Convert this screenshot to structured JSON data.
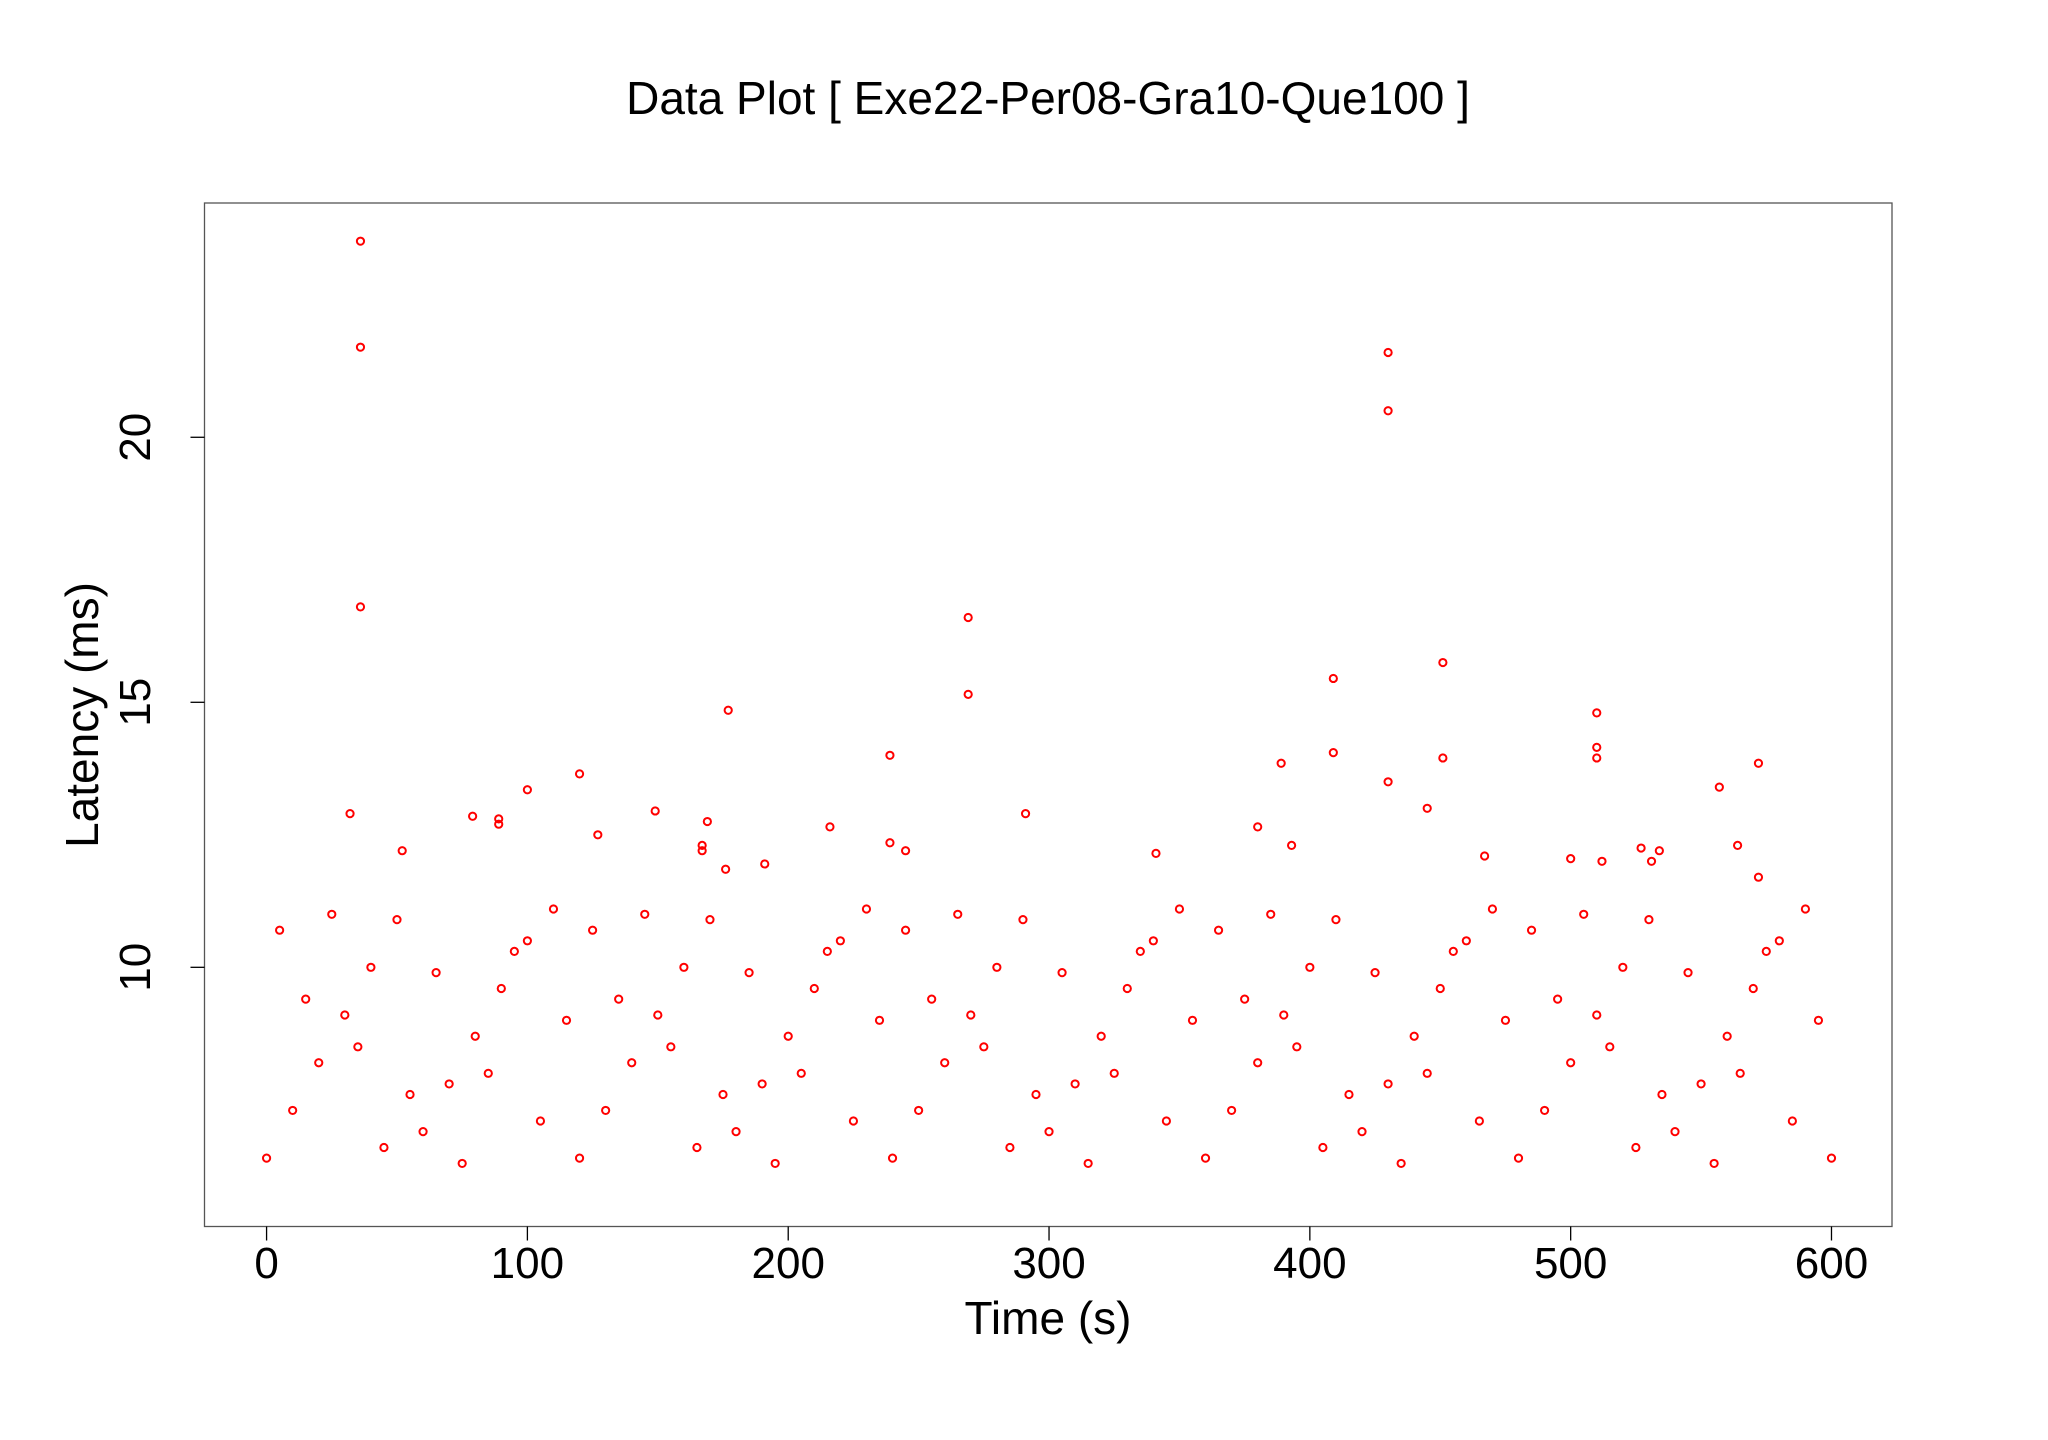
{
  "chart_data": {
    "type": "scatter",
    "title": "Data Plot [ Exe22-Per08-Gra10-Que100 ]",
    "x_label": "Time (s)",
    "y_label": "Latency (ms)",
    "color": "#ff0000",
    "xlim": [
      -23.8,
      623.2
    ],
    "ylim": [
      5.11,
      24.42
    ],
    "xticks": [
      0,
      100,
      200,
      300,
      400,
      500,
      600
    ],
    "yticks": [
      10,
      15,
      20
    ],
    "x": [
      0,
      5,
      10,
      15,
      20,
      25,
      30,
      35,
      40,
      45,
      50,
      55,
      60,
      65,
      70,
      75,
      80,
      85,
      90,
      95,
      100,
      105,
      110,
      115,
      120,
      125,
      130,
      135,
      140,
      145,
      150,
      155,
      160,
      165,
      170,
      175,
      180,
      185,
      190,
      195,
      200,
      205,
      210,
      215,
      220,
      225,
      230,
      235,
      240,
      245,
      250,
      255,
      260,
      265,
      270,
      275,
      280,
      285,
      290,
      295,
      300,
      305,
      310,
      315,
      320,
      325,
      330,
      335,
      340,
      345,
      350,
      355,
      360,
      365,
      370,
      375,
      380,
      385,
      390,
      395,
      400,
      405,
      410,
      415,
      420,
      425,
      430,
      435,
      440,
      445,
      450,
      455,
      460,
      465,
      470,
      475,
      480,
      485,
      490,
      495,
      500,
      505,
      510,
      515,
      520,
      525,
      530,
      535,
      540,
      545,
      550,
      555,
      560,
      565,
      570,
      575,
      580,
      585,
      590,
      595,
      600,
      36,
      36,
      36,
      32,
      52,
      79,
      89,
      89,
      100,
      120,
      127,
      149,
      167,
      167,
      169,
      177,
      176,
      191,
      216,
      239,
      239,
      245,
      269,
      269,
      291,
      341,
      380,
      389,
      393,
      409,
      409,
      430,
      430,
      430,
      445,
      451,
      451,
      467,
      500,
      510,
      510,
      510,
      512,
      527,
      531,
      534,
      557,
      564,
      572,
      572
    ],
    "values": [
      6.4,
      10.7,
      7.3,
      9.4,
      8.2,
      11.0,
      9.1,
      8.5,
      10.0,
      6.6,
      10.9,
      7.6,
      6.9,
      9.9,
      7.8,
      6.3,
      8.7,
      8.0,
      9.6,
      10.3,
      10.5,
      7.1,
      11.1,
      9.0,
      6.4,
      10.7,
      7.3,
      9.4,
      8.2,
      11.0,
      9.1,
      8.5,
      10.0,
      6.6,
      10.9,
      7.6,
      6.9,
      9.9,
      7.8,
      6.3,
      8.7,
      8.0,
      9.6,
      10.3,
      10.5,
      7.1,
      11.1,
      9.0,
      6.4,
      10.7,
      7.3,
      9.4,
      8.2,
      11.0,
      9.1,
      8.5,
      10.0,
      6.6,
      10.9,
      7.6,
      6.9,
      9.9,
      7.8,
      6.3,
      8.7,
      8.0,
      9.6,
      10.3,
      10.5,
      7.1,
      11.1,
      9.0,
      6.4,
      10.7,
      7.3,
      9.4,
      8.2,
      11.0,
      9.1,
      8.5,
      10.0,
      6.6,
      10.9,
      7.6,
      6.9,
      9.9,
      7.8,
      6.3,
      8.7,
      8.0,
      9.6,
      10.3,
      10.5,
      7.1,
      11.1,
      9.0,
      6.4,
      10.7,
      7.3,
      9.4,
      8.2,
      11.0,
      9.1,
      8.5,
      10.0,
      6.6,
      10.9,
      7.6,
      6.9,
      9.9,
      7.8,
      6.3,
      8.7,
      8.0,
      9.6,
      10.3,
      10.5,
      7.1,
      11.1,
      9.0,
      6.4,
      23.7,
      21.7,
      16.8,
      12.9,
      12.2,
      12.85,
      12.8,
      12.7,
      13.35,
      13.65,
      12.5,
      12.95,
      12.3,
      12.2,
      12.75,
      14.85,
      11.85,
      11.95,
      12.65,
      14.0,
      12.35,
      12.2,
      16.6,
      15.15,
      12.9,
      12.15,
      12.65,
      13.85,
      12.3,
      15.45,
      14.05,
      21.6,
      20.5,
      13.5,
      13.0,
      15.75,
      13.95,
      12.1,
      12.05,
      14.8,
      14.15,
      13.95,
      12.0,
      12.25,
      12.0,
      12.2,
      13.4,
      12.3,
      13.85,
      11.7
    ]
  }
}
